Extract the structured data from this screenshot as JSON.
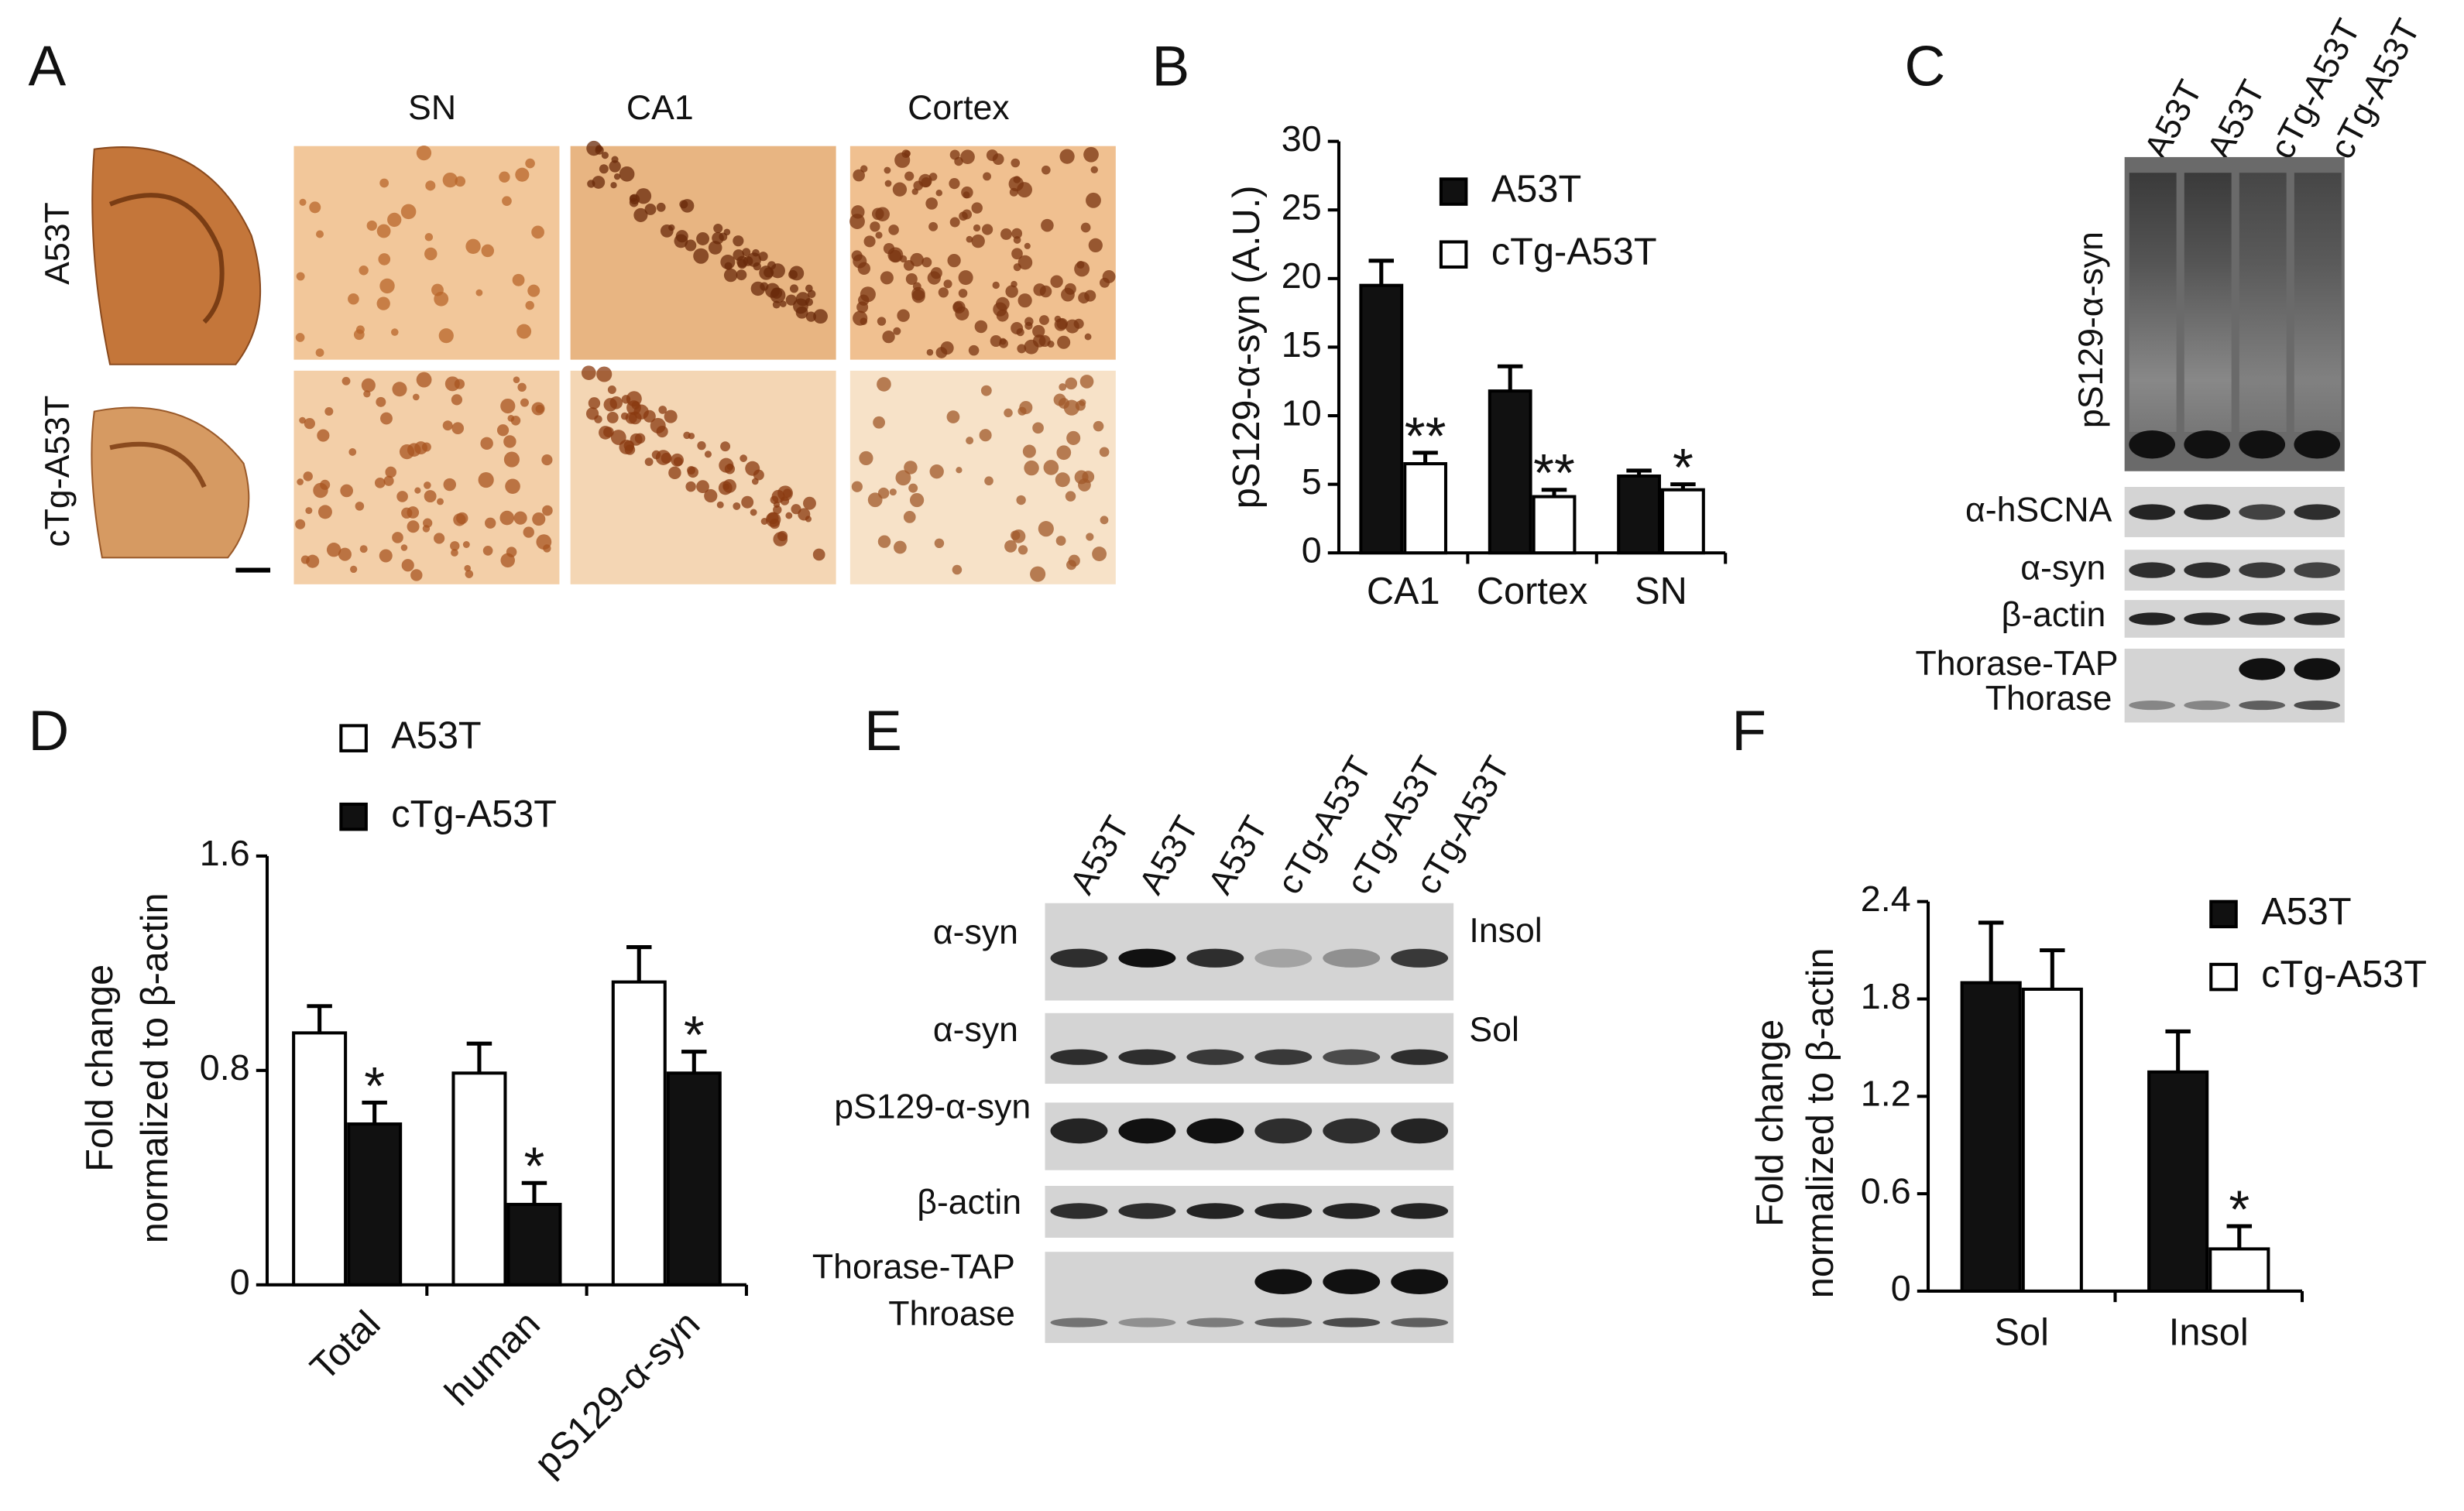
{
  "figure": {
    "A": {
      "panel": "A",
      "columns": [
        "SN",
        "CA1",
        "Cortex"
      ],
      "rows": [
        "A53T",
        "cTg-A53T"
      ]
    },
    "C": {
      "panel": "C",
      "lanes": [
        "A53T",
        "A53T",
        "cTg-A53T",
        "cTg-A53T"
      ],
      "blot_labels": [
        "pS129-α-syn",
        "α-hSCNA",
        "α-syn",
        "β-actin",
        "Thorase-TAP",
        "Thorase"
      ]
    },
    "E": {
      "panel": "E",
      "lanes": [
        "A53T",
        "A53T",
        "A53T",
        "cTg-A53T",
        "cTg-A53T",
        "cTg-A53T"
      ],
      "blot_labels": [
        "α-syn",
        "α-syn",
        "pS129-α-syn",
        "β-actin",
        "Thorase-TAP",
        "Throase"
      ],
      "fraction_labels": [
        "Insol",
        "Sol"
      ]
    }
  },
  "chart_data": [
    {
      "type": "bar",
      "panel": "B",
      "y_label": "pS129-α-syn (A.U.)",
      "categories": [
        "CA1",
        "Cortex",
        "SN"
      ],
      "series": [
        {
          "name": "A53T",
          "color": "#111111",
          "values": [
            19.5,
            11.8,
            5.6
          ],
          "errors": [
            1.8,
            1.8,
            0.4
          ]
        },
        {
          "name": "cTg-A53T",
          "color": "#ffffff",
          "values": [
            6.5,
            4.1,
            4.6
          ],
          "errors": [
            0.8,
            0.5,
            0.4
          ],
          "annotations": [
            "**",
            "**",
            "*"
          ]
        }
      ],
      "ylim": [
        0,
        30
      ],
      "yticks": [
        0,
        5,
        10,
        15,
        20,
        25,
        30
      ]
    },
    {
      "type": "bar",
      "panel": "D",
      "y_label": [
        "Fold change",
        "normalized to β-actin"
      ],
      "categories": [
        "Total",
        "human",
        "pS129-α-syn"
      ],
      "xtick_rotation": -45,
      "series": [
        {
          "name": "A53T",
          "color": "#ffffff",
          "values": [
            0.94,
            0.79,
            1.13
          ],
          "errors": [
            0.1,
            0.11,
            0.13
          ]
        },
        {
          "name": "cTg-A53T",
          "color": "#111111",
          "values": [
            0.6,
            0.3,
            0.79
          ],
          "errors": [
            0.08,
            0.08,
            0.08
          ],
          "annotations": [
            "*",
            "*",
            "*"
          ]
        }
      ],
      "ylim": [
        0,
        1.6
      ],
      "yticks": [
        0,
        0.8,
        1.6
      ]
    },
    {
      "type": "bar",
      "panel": "F",
      "y_label": [
        "Fold change",
        "normalized to β-actin"
      ],
      "categories": [
        "Sol",
        "Insol"
      ],
      "series": [
        {
          "name": "A53T",
          "color": "#111111",
          "values": [
            1.9,
            1.35
          ],
          "errors": [
            0.37,
            0.25
          ]
        },
        {
          "name": "cTg-A53T",
          "color": "#ffffff",
          "values": [
            1.86,
            0.26
          ],
          "errors": [
            0.24,
            0.14
          ],
          "annotations": [
            null,
            "*"
          ]
        }
      ],
      "ylim": [
        0,
        2.4
      ],
      "yticks": [
        0,
        0.6,
        1.2,
        1.8,
        2.4
      ]
    }
  ]
}
